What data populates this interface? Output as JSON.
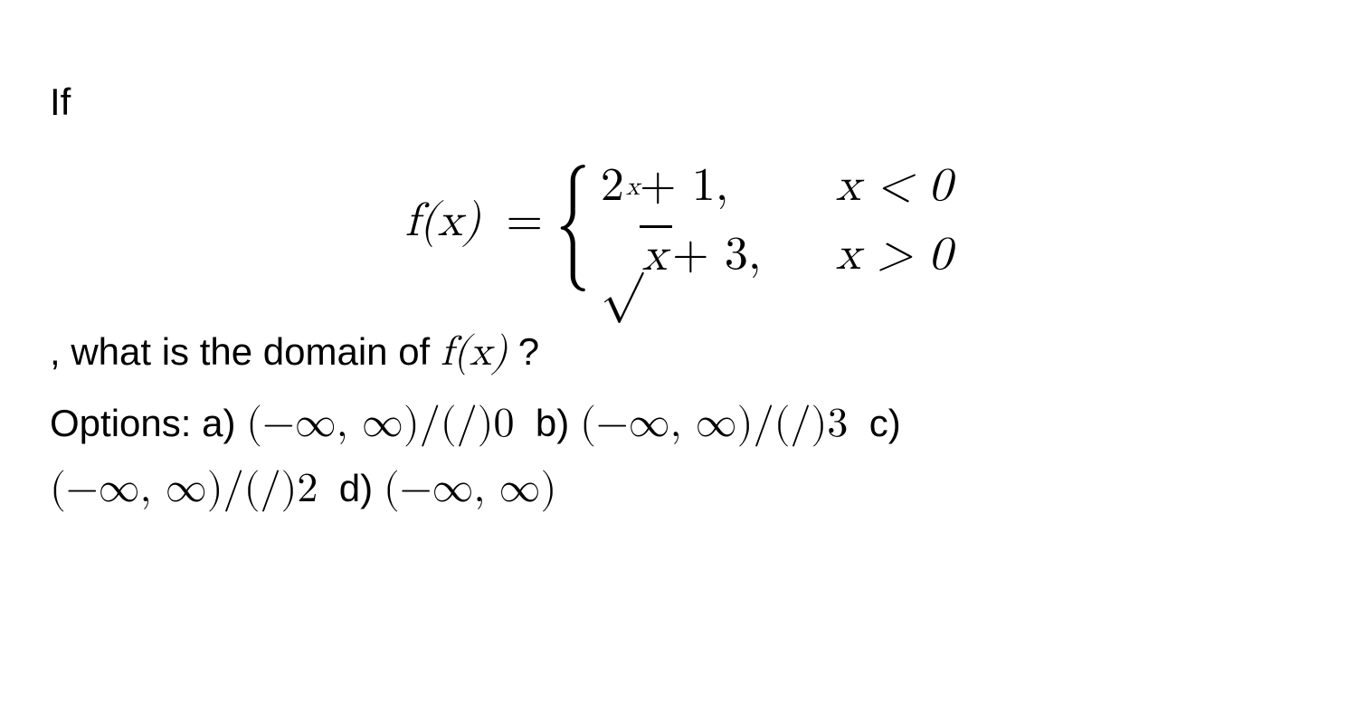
{
  "intro": "If",
  "piecewise": {
    "lhs": "f(x)",
    "equals": "=",
    "cases": [
      {
        "expr_base": "2",
        "expr_exp": "x",
        "expr_tail": " + 1,",
        "cond": "x < 0"
      },
      {
        "sqrt_of": "x",
        "expr_tail": " + 3,",
        "cond": "x > 0"
      }
    ]
  },
  "question_prefix": ", what is the domain of ",
  "question_fx": "f(x)",
  "question_suffix": " ?",
  "options_label": "Options:",
  "options": {
    "a": {
      "label": "a)",
      "math": "(−∞, ∞)/(/)0"
    },
    "b": {
      "label": "b)",
      "math": "(−∞, ∞)/(/)3"
    },
    "c": {
      "label": "c)",
      "math": "(−∞, ∞)/(/)2"
    },
    "d": {
      "label": "d)",
      "math": "(−∞, ∞)"
    }
  },
  "colors": {
    "text": "#000000",
    "background": "#ffffff"
  },
  "fonts": {
    "body_family": "Arial, Helvetica, sans-serif",
    "math_family": "Latin Modern Math, Cambria Math, STIX Two Math, Times New Roman, serif",
    "body_size_pt": 31,
    "math_display_size_pt": 39
  }
}
